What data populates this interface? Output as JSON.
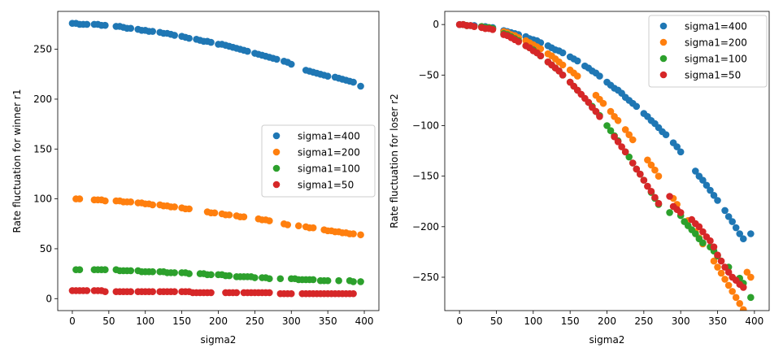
{
  "chart_data": [
    {
      "type": "scatter",
      "xlabel": "sigma2",
      "ylabel": "Rate fluctuation for winner r1",
      "xlim": [
        -20,
        420
      ],
      "ylim": [
        -12,
        288
      ],
      "xticks": [
        0,
        50,
        100,
        150,
        200,
        250,
        300,
        350,
        400
      ],
      "yticks": [
        0,
        50,
        100,
        150,
        200,
        250
      ],
      "legend_position": "center-right",
      "series": [
        {
          "name": "sigma1=400",
          "color": "#1f77b4",
          "x": [
            0,
            5,
            10,
            15,
            20,
            30,
            35,
            40,
            45,
            60,
            65,
            70,
            75,
            80,
            90,
            95,
            100,
            105,
            110,
            120,
            125,
            130,
            135,
            140,
            150,
            155,
            160,
            170,
            175,
            180,
            185,
            190,
            200,
            205,
            210,
            215,
            220,
            225,
            230,
            235,
            240,
            250,
            255,
            260,
            265,
            270,
            275,
            280,
            290,
            295,
            300,
            320,
            325,
            330,
            335,
            340,
            345,
            350,
            360,
            365,
            370,
            375,
            380,
            385,
            395
          ],
          "y": [
            276,
            276,
            275,
            275,
            275,
            275,
            275,
            274,
            274,
            273,
            273,
            272,
            271,
            271,
            270,
            269,
            269,
            268,
            268,
            267,
            266,
            266,
            265,
            264,
            263,
            262,
            261,
            260,
            259,
            258,
            258,
            257,
            255,
            255,
            254,
            253,
            252,
            251,
            250,
            249,
            248,
            246,
            245,
            244,
            243,
            242,
            241,
            240,
            238,
            237,
            235,
            229,
            228,
            227,
            226,
            225,
            224,
            223,
            222,
            221,
            220,
            219,
            218,
            217,
            213
          ]
        },
        {
          "name": "sigma1=200",
          "color": "#ff7f0e",
          "x": [
            5,
            10,
            30,
            35,
            40,
            45,
            60,
            65,
            70,
            75,
            80,
            90,
            95,
            100,
            105,
            110,
            120,
            125,
            130,
            135,
            140,
            150,
            155,
            160,
            185,
            190,
            195,
            205,
            210,
            215,
            225,
            230,
            235,
            255,
            260,
            265,
            270,
            290,
            295,
            310,
            320,
            325,
            330,
            345,
            350,
            355,
            360,
            365,
            370,
            375,
            380,
            385,
            395
          ],
          "y": [
            100,
            100,
            99,
            99,
            99,
            98,
            98,
            98,
            97,
            97,
            97,
            96,
            96,
            95,
            95,
            94,
            94,
            93,
            93,
            92,
            92,
            91,
            90,
            90,
            87,
            86,
            86,
            85,
            84,
            84,
            83,
            82,
            82,
            80,
            79,
            79,
            78,
            75,
            74,
            73,
            72,
            71,
            71,
            69,
            68,
            68,
            67,
            67,
            66,
            66,
            65,
            65,
            64
          ]
        },
        {
          "name": "sigma1=100",
          "color": "#2ca02c",
          "x": [
            5,
            10,
            30,
            35,
            40,
            45,
            60,
            65,
            70,
            75,
            80,
            90,
            95,
            100,
            105,
            110,
            120,
            125,
            130,
            135,
            140,
            150,
            155,
            160,
            175,
            180,
            185,
            190,
            200,
            205,
            210,
            215,
            225,
            230,
            235,
            240,
            245,
            250,
            260,
            265,
            270,
            285,
            300,
            305,
            310,
            315,
            320,
            325,
            330,
            340,
            345,
            350,
            365,
            380,
            385,
            395
          ],
          "y": [
            29,
            29,
            29,
            29,
            29,
            29,
            29,
            28,
            28,
            28,
            28,
            28,
            27,
            27,
            27,
            27,
            27,
            27,
            26,
            26,
            26,
            26,
            26,
            25,
            25,
            25,
            24,
            24,
            24,
            24,
            23,
            23,
            22,
            22,
            22,
            22,
            22,
            21,
            21,
            21,
            20,
            20,
            20,
            20,
            19,
            19,
            19,
            19,
            19,
            18,
            18,
            18,
            18,
            18,
            17,
            17
          ]
        },
        {
          "name": "sigma1=50",
          "color": "#d62728",
          "x": [
            0,
            5,
            10,
            15,
            20,
            30,
            35,
            40,
            45,
            60,
            65,
            70,
            75,
            80,
            90,
            95,
            100,
            105,
            110,
            120,
            125,
            130,
            135,
            140,
            150,
            155,
            160,
            165,
            170,
            175,
            180,
            185,
            190,
            210,
            215,
            220,
            225,
            235,
            240,
            245,
            250,
            255,
            260,
            265,
            270,
            285,
            290,
            295,
            300,
            315,
            320,
            325,
            330,
            335,
            340,
            345,
            350,
            355,
            360,
            365,
            370,
            375,
            380,
            385
          ],
          "y": [
            8,
            8,
            8,
            8,
            8,
            8,
            8,
            8,
            7,
            7,
            7,
            7,
            7,
            7,
            7,
            7,
            7,
            7,
            7,
            7,
            7,
            7,
            7,
            7,
            7,
            7,
            7,
            6,
            6,
            6,
            6,
            6,
            6,
            6,
            6,
            6,
            6,
            6,
            6,
            6,
            6,
            6,
            6,
            6,
            6,
            5,
            5,
            5,
            5,
            5,
            5,
            5,
            5,
            5,
            5,
            5,
            5,
            5,
            5,
            5,
            5,
            5,
            5,
            5
          ]
        }
      ]
    },
    {
      "type": "scatter",
      "xlabel": "sigma2",
      "ylabel": "Rate fluctuation for loser r2",
      "xlim": [
        -20,
        420
      ],
      "ylim": [
        -283,
        13
      ],
      "xticks": [
        0,
        50,
        100,
        150,
        200,
        250,
        300,
        350,
        400
      ],
      "yticks": [
        0,
        -50,
        -100,
        -150,
        -200,
        -250
      ],
      "legend_position": "top-right",
      "series": [
        {
          "name": "sigma1=400",
          "color": "#1f77b4",
          "x": [
            0,
            5,
            10,
            15,
            20,
            30,
            35,
            40,
            45,
            60,
            65,
            70,
            75,
            80,
            90,
            95,
            100,
            105,
            110,
            120,
            125,
            130,
            135,
            140,
            150,
            155,
            160,
            170,
            175,
            180,
            185,
            190,
            200,
            205,
            210,
            215,
            220,
            225,
            230,
            235,
            240,
            250,
            255,
            260,
            265,
            270,
            275,
            280,
            290,
            295,
            300,
            320,
            325,
            330,
            335,
            340,
            345,
            350,
            360,
            365,
            370,
            375,
            380,
            385,
            395
          ],
          "y": [
            0,
            0,
            -1,
            -1,
            -1,
            -2,
            -2,
            -3,
            -3,
            -6,
            -7,
            -8,
            -9,
            -10,
            -12,
            -14,
            -15,
            -16,
            -18,
            -21,
            -23,
            -25,
            -26,
            -28,
            -32,
            -34,
            -36,
            -41,
            -43,
            -46,
            -48,
            -51,
            -57,
            -60,
            -63,
            -65,
            -68,
            -72,
            -75,
            -78,
            -81,
            -88,
            -91,
            -95,
            -98,
            -102,
            -106,
            -109,
            -117,
            -121,
            -126,
            -145,
            -150,
            -154,
            -159,
            -164,
            -169,
            -174,
            -184,
            -190,
            -195,
            -201,
            -207,
            -212,
            -207
          ]
        },
        {
          "name": "sigma1=200",
          "color": "#ff7f0e",
          "x": [
            5,
            10,
            30,
            35,
            40,
            45,
            60,
            65,
            70,
            75,
            80,
            90,
            95,
            100,
            105,
            110,
            120,
            125,
            130,
            135,
            140,
            150,
            155,
            160,
            185,
            190,
            195,
            205,
            210,
            215,
            225,
            230,
            235,
            255,
            260,
            265,
            270,
            290,
            295,
            310,
            320,
            325,
            330,
            345,
            350,
            355,
            360,
            365,
            370,
            375,
            380,
            385,
            390,
            395
          ],
          "y": [
            0,
            -1,
            -2,
            -3,
            -3,
            -4,
            -7,
            -8,
            -10,
            -11,
            -13,
            -16,
            -18,
            -20,
            -22,
            -24,
            -29,
            -31,
            -34,
            -37,
            -40,
            -45,
            -48,
            -51,
            -70,
            -74,
            -78,
            -86,
            -91,
            -95,
            -104,
            -109,
            -114,
            -134,
            -139,
            -144,
            -150,
            -172,
            -178,
            -194,
            -205,
            -211,
            -217,
            -234,
            -240,
            -246,
            -252,
            -258,
            -264,
            -270,
            -276,
            -282,
            -245,
            -250
          ]
        },
        {
          "name": "sigma1=100",
          "color": "#2ca02c",
          "x": [
            5,
            10,
            30,
            35,
            40,
            45,
            60,
            65,
            70,
            75,
            80,
            90,
            95,
            100,
            105,
            110,
            120,
            125,
            130,
            135,
            140,
            150,
            155,
            160,
            175,
            180,
            185,
            190,
            200,
            205,
            210,
            215,
            225,
            230,
            235,
            240,
            245,
            250,
            260,
            265,
            270,
            285,
            300,
            305,
            310,
            315,
            320,
            325,
            330,
            340,
            345,
            350,
            365,
            380,
            385,
            395
          ],
          "y": [
            0,
            -1,
            -2,
            -3,
            -3,
            -4,
            -9,
            -10,
            -12,
            -14,
            -16,
            -21,
            -23,
            -25,
            -28,
            -31,
            -37,
            -40,
            -43,
            -46,
            -50,
            -57,
            -61,
            -65,
            -77,
            -81,
            -86,
            -90,
            -100,
            -105,
            -110,
            -115,
            -126,
            -131,
            -137,
            -143,
            -148,
            -154,
            -166,
            -172,
            -178,
            -186,
            -189,
            -195,
            -199,
            -203,
            -207,
            -212,
            -216,
            -220,
            -224,
            -229,
            -240,
            -251,
            -256,
            -270
          ]
        },
        {
          "name": "sigma1=50",
          "color": "#d62728",
          "x": [
            0,
            5,
            10,
            15,
            20,
            30,
            35,
            40,
            45,
            60,
            65,
            70,
            75,
            80,
            90,
            95,
            100,
            105,
            110,
            120,
            125,
            130,
            135,
            140,
            150,
            155,
            160,
            165,
            170,
            175,
            180,
            185,
            190,
            210,
            215,
            220,
            225,
            235,
            240,
            245,
            250,
            255,
            260,
            265,
            270,
            285,
            290,
            295,
            300,
            315,
            320,
            325,
            330,
            335,
            340,
            345,
            350,
            355,
            360,
            365,
            370,
            375,
            380,
            385
          ],
          "y": [
            0,
            0,
            -1,
            -1,
            -2,
            -3,
            -4,
            -4,
            -5,
            -10,
            -11,
            -13,
            -15,
            -17,
            -21,
            -23,
            -26,
            -28,
            -31,
            -37,
            -40,
            -43,
            -46,
            -50,
            -57,
            -61,
            -65,
            -69,
            -73,
            -77,
            -82,
            -86,
            -91,
            -111,
            -116,
            -121,
            -126,
            -137,
            -143,
            -148,
            -154,
            -160,
            -165,
            -171,
            -177,
            -170,
            -180,
            -183,
            -186,
            -193,
            -197,
            -200,
            -205,
            -210,
            -214,
            -220,
            -228,
            -234,
            -240,
            -245,
            -250,
            -253,
            -257,
            -260
          ]
        }
      ]
    }
  ]
}
